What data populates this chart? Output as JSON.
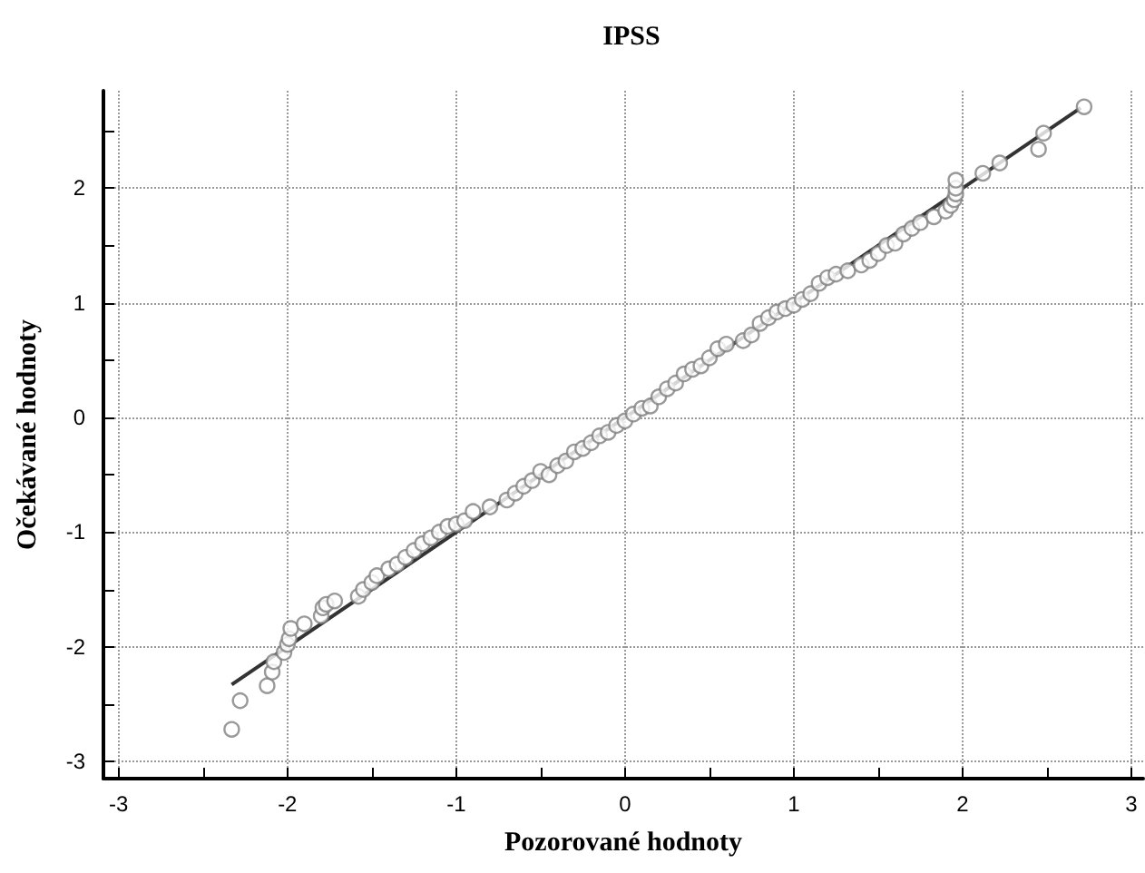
{
  "chart_data": {
    "type": "scatter",
    "title": "IPSS",
    "xlabel": "Pozorované hodnoty",
    "ylabel": "Očekávané hodnoty",
    "xlim": [
      -3.09,
      3.07
    ],
    "ylim": [
      -3.15,
      2.85
    ],
    "xticks": [
      -3,
      {
        "value": -2.5,
        "label": null
      },
      -2,
      {
        "value": -1.5,
        "label": null
      },
      -1,
      {
        "value": -0.5,
        "label": null
      },
      0,
      {
        "value": 0.5,
        "label": null
      },
      1,
      {
        "value": 1.5,
        "label": null
      },
      2,
      {
        "value": 2.5,
        "label": null
      },
      3
    ],
    "yticks": [
      -3,
      {
        "value": -2.5,
        "label": null
      },
      -2,
      {
        "value": -1.5,
        "label": null
      },
      -1,
      {
        "value": -0.5,
        "label": null
      },
      0,
      {
        "value": 0.5,
        "label": null
      },
      1,
      {
        "value": 1.5,
        "label": null
      },
      2,
      {
        "value": 2.5,
        "label": null
      }
    ],
    "grid": true,
    "marker": "circle",
    "series": [
      {
        "color": "#808080",
        "x": [
          -2.33,
          -2.28,
          -2.12,
          -2.09,
          -2.08,
          -2.02,
          -2.0,
          -1.99,
          -1.98,
          -1.9,
          -1.8,
          -1.79,
          -1.77,
          -1.72,
          -1.58,
          -1.55,
          -1.5,
          -1.47,
          -1.4,
          -1.35,
          -1.3,
          -1.25,
          -1.2,
          -1.15,
          -1.1,
          -1.05,
          -1.0,
          -0.95,
          -0.9,
          -0.8,
          -0.7,
          -0.65,
          -0.6,
          -0.55,
          -0.5,
          -0.45,
          -0.4,
          -0.35,
          -0.3,
          -0.25,
          -0.2,
          -0.15,
          -0.1,
          -0.05,
          0,
          0.05,
          0.1,
          0.15,
          0.2,
          0.25,
          0.3,
          0.35,
          0.4,
          0.45,
          0.5,
          0.55,
          0.6,
          0.7,
          0.75,
          0.8,
          0.85,
          0.9,
          0.95,
          1.0,
          1.05,
          1.1,
          1.15,
          1.2,
          1.25,
          1.32,
          1.4,
          1.45,
          1.5,
          1.55,
          1.6,
          1.65,
          1.7,
          1.75,
          1.83,
          1.9,
          1.93,
          1.95,
          1.96,
          1.96,
          1.96,
          2.12,
          2.22,
          2.45,
          2.48,
          2.72
        ],
        "values": [
          -2.72,
          -2.47,
          -2.34,
          -2.22,
          -2.13,
          -2.05,
          -1.98,
          -1.93,
          -1.84,
          -1.8,
          -1.73,
          -1.66,
          -1.63,
          -1.6,
          -1.56,
          -1.5,
          -1.44,
          -1.38,
          -1.32,
          -1.28,
          -1.22,
          -1.16,
          -1.1,
          -1.05,
          -1.0,
          -0.95,
          -0.93,
          -0.9,
          -0.82,
          -0.78,
          -0.72,
          -0.66,
          -0.6,
          -0.55,
          -0.47,
          -0.5,
          -0.42,
          -0.38,
          -0.3,
          -0.27,
          -0.22,
          -0.16,
          -0.13,
          -0.07,
          -0.03,
          0.03,
          0.08,
          0.1,
          0.18,
          0.25,
          0.3,
          0.38,
          0.42,
          0.45,
          0.52,
          0.6,
          0.64,
          0.67,
          0.72,
          0.82,
          0.87,
          0.92,
          0.95,
          0.98,
          1.03,
          1.08,
          1.17,
          1.22,
          1.25,
          1.28,
          1.33,
          1.37,
          1.43,
          1.5,
          1.52,
          1.6,
          1.65,
          1.7,
          1.75,
          1.8,
          1.85,
          1.9,
          1.95,
          2.0,
          2.07,
          2.13,
          2.22,
          2.34,
          2.48,
          2.71
        ]
      },
      {
        "type": "line",
        "color": "#333333",
        "marker": "none",
        "x": [
          -2.33,
          2.7
        ],
        "values": [
          -2.33,
          2.7
        ]
      }
    ]
  }
}
